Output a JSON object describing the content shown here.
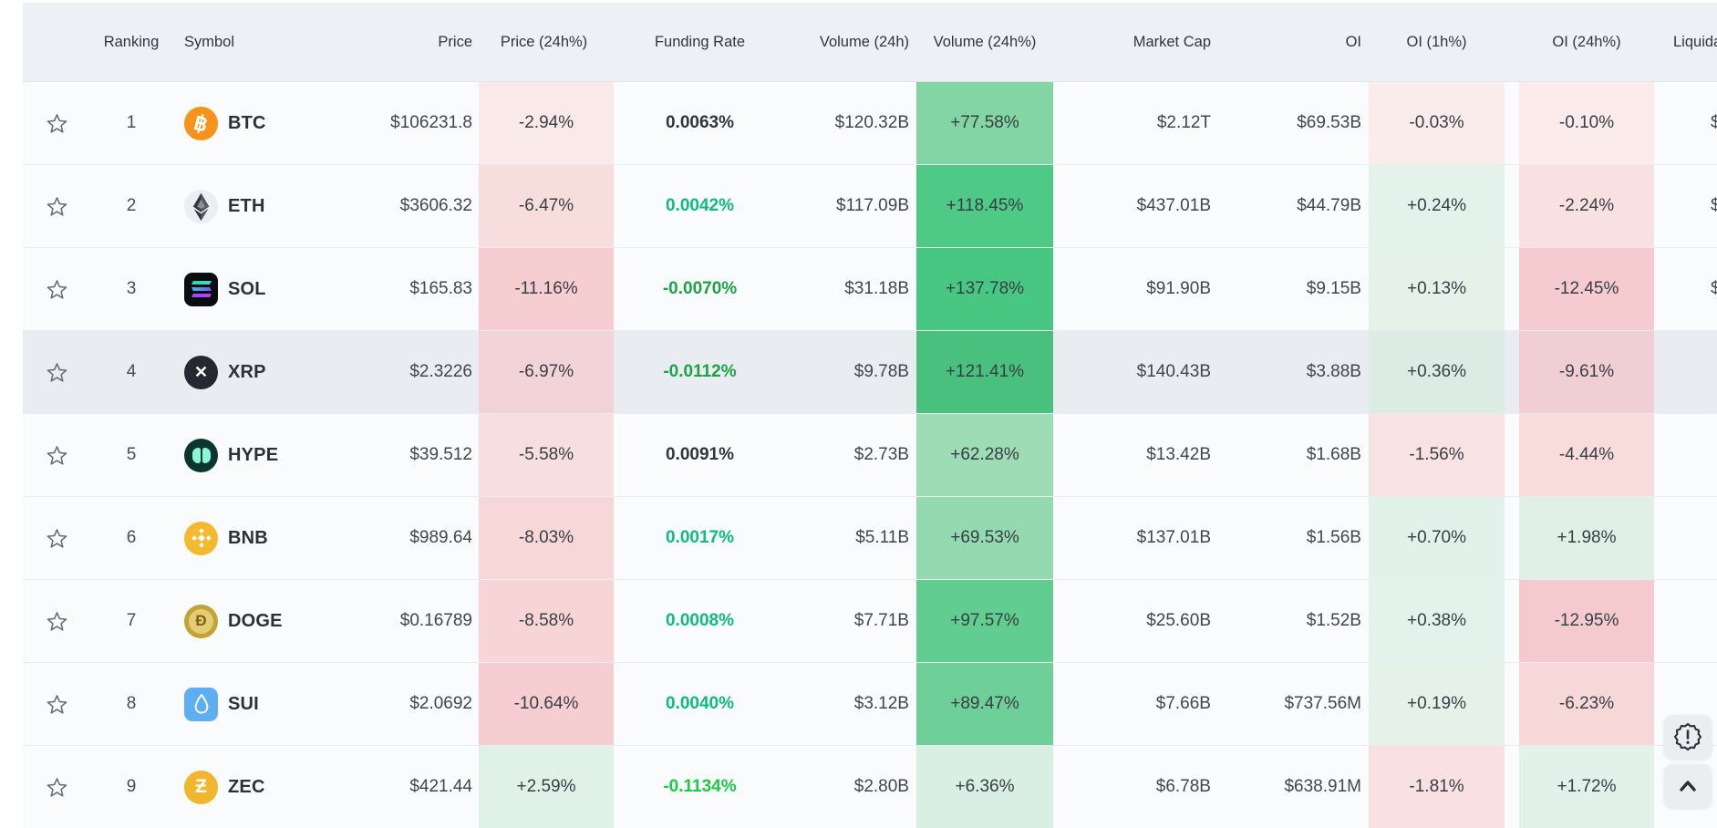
{
  "colors": {
    "header_bg": "#edf0f4",
    "row_bg": "#fafbfc",
    "row_highlight_bg": "#e9edf1",
    "funding": {
      "neutral": "#2f3640",
      "teal": "#0cbd7c",
      "green": "#1ca345",
      "lime": "#1ecb43"
    },
    "positive_cell_strong": "#47c781",
    "negative_cell_strong": "#f5cbd0",
    "icon_colors": {
      "btc": "#f7931a",
      "eth": "#eceef1",
      "sol": "#0b0d10",
      "xrp": "#23292f",
      "hype": "#0b362f",
      "bnb": "#f3ba2f",
      "doge": "#c2a335",
      "sui": "#5faef2",
      "zec": "#f1b62e"
    }
  },
  "floating": {
    "badge_button": "alert-badge",
    "scroll_top_button": "scroll-to-top"
  },
  "table": {
    "columns": [
      {
        "key": "favorite",
        "label": "",
        "align": "ac"
      },
      {
        "key": "ranking",
        "label": "Ranking",
        "align": "ac"
      },
      {
        "key": "symbol",
        "label": "Symbol",
        "align": "al"
      },
      {
        "key": "price",
        "label": "Price",
        "align": "ar"
      },
      {
        "key": "price_change_24h",
        "label": "Price (24h%)",
        "align": "ac"
      },
      {
        "key": "funding_rate",
        "label": "Funding Rate",
        "align": "ac"
      },
      {
        "key": "volume_24h",
        "label": "Volume (24h)",
        "align": "ar"
      },
      {
        "key": "volume_change_24h",
        "label": "Volume (24h%)",
        "align": "ac"
      },
      {
        "key": "market_cap",
        "label": "Market Cap",
        "align": "ar"
      },
      {
        "key": "oi",
        "label": "OI",
        "align": "ar"
      },
      {
        "key": "oi_change_1h",
        "label": "OI (1h%)",
        "align": "ac"
      },
      {
        "key": "oi_change_24h",
        "label": "OI (24h%)",
        "align": "ac"
      },
      {
        "key": "liquidation",
        "label": "Liquidation",
        "align": "al"
      }
    ],
    "rows": [
      {
        "rank": "1",
        "symbol": "BTC",
        "icon": "btc",
        "price": "$106231.8",
        "price_24h": "-2.94%",
        "funding": "0.0063%",
        "funding_style": "neutral",
        "volume": "$120.32B",
        "volume_24h": "+77.58%",
        "market_cap": "$2.12T",
        "oi": "$69.53B",
        "oi_1h": "-0.03%",
        "oi_24h": "-0.10%",
        "liq_fragment": "$",
        "bg": {
          "price24": "#fae9e9",
          "vol24": "#83d6a3",
          "oi1h": "#fbecec",
          "oi24": "#fbebeb"
        },
        "highlighted": false
      },
      {
        "rank": "2",
        "symbol": "ETH",
        "icon": "eth",
        "price": "$3606.32",
        "price_24h": "-6.47%",
        "funding": "0.0042%",
        "funding_style": "teal",
        "volume": "$117.09B",
        "volume_24h": "+118.45%",
        "market_cap": "$437.01B",
        "oi": "$44.79B",
        "oi_1h": "+0.24%",
        "oi_24h": "-2.24%",
        "liq_fragment": "$",
        "bg": {
          "price24": "#f8dddd",
          "vol24": "#4ec986",
          "oi1h": "#e3f2ea",
          "oi24": "#f9e0e1"
        },
        "highlighted": false
      },
      {
        "rank": "3",
        "symbol": "SOL",
        "icon": "sol",
        "price": "$165.83",
        "price_24h": "-11.16%",
        "funding": "-0.0070%",
        "funding_style": "green",
        "volume": "$31.18B",
        "volume_24h": "+137.78%",
        "market_cap": "$91.90B",
        "oi": "$9.15B",
        "oi_1h": "+0.13%",
        "oi_24h": "-12.45%",
        "liq_fragment": "$",
        "bg": {
          "price24": "#f6cdd1",
          "vol24": "#47c781",
          "oi1h": "#e4f2ea",
          "oi24": "#f5cbd0"
        },
        "highlighted": false
      },
      {
        "rank": "4",
        "symbol": "XRP",
        "icon": "xrp",
        "price": "$2.3226",
        "price_24h": "-6.97%",
        "funding": "-0.0112%",
        "funding_style": "green",
        "volume": "$9.78B",
        "volume_24h": "+121.41%",
        "market_cap": "$140.43B",
        "oi": "$3.88B",
        "oi_1h": "+0.36%",
        "oi_24h": "-9.61%",
        "liq_fragment": "",
        "bg": {
          "price24": "#f2d3d8",
          "vol24": "#4ac07f",
          "oi1h": "#dcebe3",
          "oi24": "#f0cfd4"
        },
        "highlighted": true
      },
      {
        "rank": "5",
        "symbol": "HYPE",
        "icon": "hype",
        "price": "$39.512",
        "price_24h": "-5.58%",
        "funding": "0.0091%",
        "funding_style": "neutral",
        "volume": "$2.73B",
        "volume_24h": "+62.28%",
        "market_cap": "$13.42B",
        "oi": "$1.68B",
        "oi_1h": "-1.56%",
        "oi_24h": "-4.44%",
        "liq_fragment": "",
        "bg": {
          "price24": "#f8dfdf",
          "vol24": "#9edcb6",
          "oi1h": "#f9e2e2",
          "oi24": "#f8dcdc"
        },
        "highlighted": false
      },
      {
        "rank": "6",
        "symbol": "BNB",
        "icon": "bnb",
        "price": "$989.64",
        "price_24h": "-8.03%",
        "funding": "0.0017%",
        "funding_style": "teal",
        "volume": "$5.11B",
        "volume_24h": "+69.53%",
        "market_cap": "$137.01B",
        "oi": "$1.56B",
        "oi_1h": "+0.70%",
        "oi_24h": "+1.98%",
        "liq_fragment": "",
        "bg": {
          "price24": "#f7d7d8",
          "vol24": "#94dab0",
          "oi1h": "#e2f1e9",
          "oi24": "#e1f0e7"
        },
        "highlighted": false
      },
      {
        "rank": "7",
        "symbol": "DOGE",
        "icon": "doge",
        "price": "$0.16789",
        "price_24h": "-8.58%",
        "funding": "0.0008%",
        "funding_style": "teal",
        "volume": "$7.71B",
        "volume_24h": "+97.57%",
        "market_cap": "$25.60B",
        "oi": "$1.52B",
        "oi_1h": "+0.38%",
        "oi_24h": "-12.95%",
        "liq_fragment": "",
        "bg": {
          "price24": "#f7d5d6",
          "vol24": "#62cd91",
          "oi1h": "#e3f2ea",
          "oi24": "#f5cace"
        },
        "highlighted": false
      },
      {
        "rank": "8",
        "symbol": "SUI",
        "icon": "sui",
        "price": "$2.0692",
        "price_24h": "-10.64%",
        "funding": "0.0040%",
        "funding_style": "teal",
        "volume": "$3.12B",
        "volume_24h": "+89.47%",
        "market_cap": "$7.66B",
        "oi": "$737.56M",
        "oi_1h": "+0.19%",
        "oi_24h": "-6.23%",
        "liq_fragment": "",
        "bg": {
          "price24": "#f6ced2",
          "vol24": "#6ed098",
          "oi1h": "#e4f2ea",
          "oi24": "#f7d8d9"
        },
        "highlighted": false
      },
      {
        "rank": "9",
        "symbol": "ZEC",
        "icon": "zec",
        "price": "$421.44",
        "price_24h": "+2.59%",
        "funding": "-0.1134%",
        "funding_style": "lime",
        "volume": "$2.80B",
        "volume_24h": "+6.36%",
        "market_cap": "$6.78B",
        "oi": "$638.91M",
        "oi_1h": "-1.81%",
        "oi_24h": "+1.72%",
        "liq_fragment": "",
        "bg": {
          "price24": "#e0f1e8",
          "vol24": "#d9efe3",
          "oi1h": "#f9e1e1",
          "oi24": "#e2f1e9"
        },
        "highlighted": false
      }
    ]
  }
}
